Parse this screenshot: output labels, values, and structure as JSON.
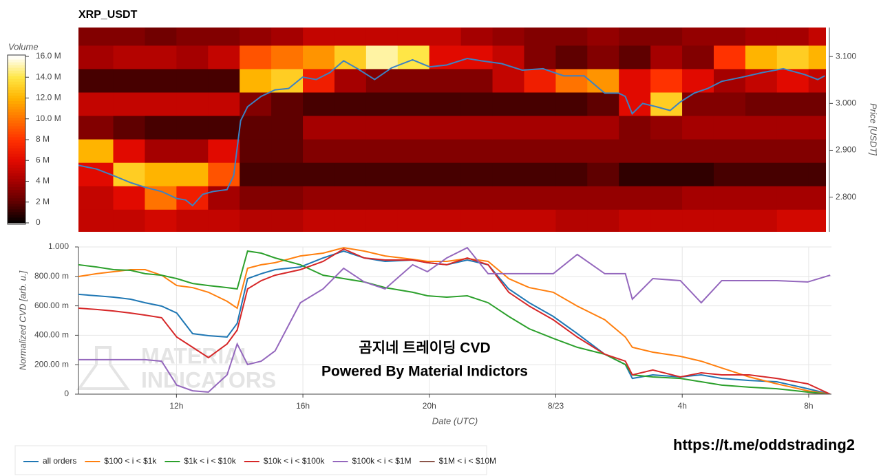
{
  "chart_data": [
    {
      "type": "heatmap",
      "title": "XRP_USDT",
      "colormap": "hot",
      "x_edges": [
        8.9,
        10,
        11,
        12,
        13,
        14,
        15,
        16,
        17,
        18,
        19,
        20,
        21,
        22,
        23,
        24,
        25,
        26,
        27,
        28,
        29,
        30,
        31,
        32,
        32.55
      ],
      "y_edges": [
        2.724,
        2.774,
        2.824,
        2.874,
        2.924,
        2.974,
        3.024,
        3.074,
        3.124,
        3.174
      ],
      "z": [
        [
          5,
          5,
          5.5,
          5,
          5,
          4.5,
          4.5,
          5,
          5,
          5,
          5,
          5,
          5,
          5,
          5,
          4.5,
          4.5,
          5,
          5,
          5,
          5,
          5,
          5.5,
          5.5
        ],
        [
          5,
          6,
          10,
          7,
          4,
          3,
          3,
          3.5,
          3.5,
          3.5,
          3.5,
          3.5,
          3.5,
          3.5,
          3.5,
          3.5,
          3.5,
          3.5,
          3.5,
          4,
          4,
          4,
          4,
          4
        ],
        [
          6,
          13,
          12,
          12,
          9,
          1.5,
          1.5,
          1.5,
          1.5,
          1.5,
          1.5,
          1.5,
          1.5,
          1.5,
          1.5,
          1.5,
          2,
          1,
          1,
          1,
          1.5,
          1.5,
          1.5,
          1.5
        ],
        [
          12,
          6,
          4,
          4,
          6,
          2,
          2,
          3,
          3,
          3,
          3,
          3,
          3,
          3,
          3,
          3,
          3,
          3,
          3,
          3,
          3,
          3,
          3,
          3
        ],
        [
          3,
          2,
          1.5,
          1.5,
          1.5,
          2,
          2,
          4,
          4,
          4,
          4,
          4,
          4,
          4,
          4,
          4,
          4,
          3,
          3.5,
          4,
          4,
          4,
          4,
          4
        ],
        [
          5,
          5,
          5,
          5,
          5,
          3,
          2,
          1.5,
          1.5,
          1.5,
          1.5,
          1.5,
          1.5,
          1.5,
          1.5,
          1.5,
          2,
          6,
          13,
          3,
          3,
          2.5,
          2.5,
          2.5
        ],
        [
          1.5,
          1.5,
          1.5,
          1.5,
          1.5,
          12,
          13,
          7,
          4,
          3,
          3,
          3,
          3,
          5,
          7,
          10,
          11,
          6,
          8,
          6,
          4,
          5,
          6,
          5
        ],
        [
          4,
          4.5,
          4.5,
          4,
          5,
          9,
          10,
          11,
          13,
          15,
          14,
          6,
          6,
          5,
          3,
          2,
          3,
          2,
          4,
          3,
          8,
          12,
          13,
          12
        ],
        [
          3,
          3,
          2.5,
          3,
          3,
          3.5,
          4,
          5,
          5,
          5,
          5,
          5,
          4,
          3.5,
          3,
          3,
          3.5,
          3,
          3,
          3.5,
          3.5,
          4,
          4,
          5
        ]
      ],
      "colorbar": {
        "label": "Volume",
        "lim": [
          0,
          16
        ],
        "ticks": [
          0,
          {
            "value": 2,
            "label": "2 M"
          },
          {
            "value": 4,
            "label": "4 M"
          },
          {
            "value": 6,
            "label": "6 M"
          },
          {
            "value": 8,
            "label": "8 M"
          },
          {
            "value": 10,
            "label": "10.0 M"
          },
          {
            "value": 12,
            "label": "12.0 M"
          },
          {
            "value": 14,
            "label": "14.0 M"
          },
          {
            "value": 16,
            "label": "16.0 M"
          }
        ]
      },
      "price": {
        "color": "#3b82c4",
        "x": [
          8.9,
          9.47,
          10.01,
          10.55,
          11.01,
          11.53,
          12.01,
          12.29,
          12.51,
          12.83,
          13.16,
          13.6,
          13.81,
          14.03,
          14.25,
          14.68,
          15.12,
          15.55,
          15.99,
          16.42,
          16.86,
          17.29,
          17.73,
          18.27,
          18.81,
          19.47,
          20.01,
          20.55,
          21.2,
          21.64,
          22.29,
          22.94,
          23.6,
          24.25,
          24.9,
          25.55,
          25.99,
          26.2,
          26.42,
          26.75,
          27.18,
          27.62,
          27.94,
          28.38,
          28.81,
          29.25,
          29.9,
          30.55,
          31.2,
          31.86,
          32.29,
          32.51
        ],
        "values": [
          2.868,
          2.86,
          2.846,
          2.831,
          2.821,
          2.812,
          2.797,
          2.794,
          2.782,
          2.806,
          2.812,
          2.816,
          2.846,
          2.963,
          2.993,
          3.015,
          3.029,
          3.032,
          3.056,
          3.051,
          3.066,
          3.091,
          3.074,
          3.051,
          3.076,
          3.093,
          3.078,
          3.082,
          3.096,
          3.091,
          3.085,
          3.071,
          3.074,
          3.059,
          3.059,
          3.022,
          3.022,
          3.015,
          2.978,
          3.0,
          2.993,
          2.985,
          3.003,
          3.022,
          3.032,
          3.047,
          3.056,
          3.066,
          3.074,
          3.062,
          3.051,
          3.059
        ]
      },
      "xlim": [
        8.9,
        32.55
      ],
      "ylim": [
        2.726,
        3.162
      ],
      "yticks": [
        {
          "value": 2.8,
          "label": "2.800"
        },
        {
          "value": 2.9,
          "label": "2.900"
        },
        {
          "value": 3.0,
          "label": "3.000"
        },
        {
          "value": 3.1,
          "label": "3.100"
        }
      ],
      "ylabel": "Price [USDT]",
      "yaxis_side": "right"
    },
    {
      "type": "line",
      "x": [
        8.9,
        9.47,
        10.01,
        10.55,
        11.01,
        11.53,
        12.01,
        12.51,
        13.01,
        13.6,
        13.92,
        14.25,
        14.68,
        15.12,
        15.92,
        16.64,
        17.29,
        17.94,
        18.6,
        19.47,
        19.94,
        20.55,
        21.2,
        21.86,
        22.51,
        23.16,
        23.92,
        24.68,
        25.55,
        26.2,
        26.42,
        27.07,
        27.94,
        28.6,
        29.25,
        30.12,
        30.99,
        31.97,
        32.68
      ],
      "series": [
        {
          "name": "all orders",
          "color": "#1f77b4",
          "values": [
            0.678,
            0.668,
            0.659,
            0.645,
            0.621,
            0.598,
            0.551,
            0.411,
            0.397,
            0.388,
            0.481,
            0.785,
            0.818,
            0.846,
            0.864,
            0.925,
            0.972,
            0.925,
            0.902,
            0.911,
            0.893,
            0.879,
            0.911,
            0.879,
            0.715,
            0.621,
            0.528,
            0.411,
            0.271,
            0.201,
            0.107,
            0.131,
            0.117,
            0.131,
            0.107,
            0.093,
            0.084,
            0.037,
            0
          ]
        },
        {
          "name": "$100 < i < $1k",
          "color": "#ff7f0e",
          "values": [
            0.799,
            0.818,
            0.832,
            0.846,
            0.846,
            0.808,
            0.738,
            0.724,
            0.692,
            0.631,
            0.584,
            0.855,
            0.879,
            0.893,
            0.939,
            0.958,
            0.995,
            0.972,
            0.939,
            0.916,
            0.902,
            0.902,
            0.921,
            0.902,
            0.785,
            0.724,
            0.692,
            0.598,
            0.505,
            0.388,
            0.318,
            0.285,
            0.257,
            0.224,
            0.178,
            0.117,
            0.07,
            0.023,
            0
          ]
        },
        {
          "name": "$1k < i < $10k",
          "color": "#2ca02c",
          "values": [
            0.879,
            0.864,
            0.846,
            0.841,
            0.818,
            0.808,
            0.785,
            0.752,
            0.738,
            0.724,
            0.715,
            0.972,
            0.958,
            0.925,
            0.879,
            0.808,
            0.785,
            0.762,
            0.724,
            0.692,
            0.668,
            0.659,
            0.668,
            0.621,
            0.528,
            0.444,
            0.379,
            0.318,
            0.271,
            0.201,
            0.131,
            0.117,
            0.107,
            0.084,
            0.061,
            0.047,
            0.037,
            0.014,
            0
          ]
        },
        {
          "name": "$10k < i < $100k",
          "color": "#d62728",
          "values": [
            0.584,
            0.575,
            0.565,
            0.551,
            0.537,
            0.519,
            0.388,
            0.318,
            0.248,
            0.341,
            0.435,
            0.715,
            0.771,
            0.808,
            0.846,
            0.902,
            0.986,
            0.925,
            0.911,
            0.911,
            0.893,
            0.879,
            0.925,
            0.879,
            0.692,
            0.598,
            0.505,
            0.388,
            0.271,
            0.224,
            0.131,
            0.164,
            0.117,
            0.145,
            0.131,
            0.131,
            0.107,
            0.07,
            0
          ]
        },
        {
          "name": "$100k < i < $1M",
          "color": "#9467bd",
          "values": [
            0.234,
            0.234,
            0.234,
            0.234,
            0.234,
            0.224,
            0.061,
            0.023,
            0.014,
            0.131,
            0.341,
            0.201,
            0.224,
            0.294,
            0.621,
            0.715,
            0.855,
            0.762,
            0.715,
            0.879,
            0.832,
            0.925,
            0.995,
            0.818,
            0.818,
            0.818,
            0.818,
            0.949,
            0.818,
            0.818,
            0.645,
            0.785,
            0.771,
            0.621,
            0.771,
            0.771,
            0.771,
            0.762,
            0.808
          ]
        },
        {
          "name": "$1M < i < $10M",
          "color": "#8c564b",
          "values": [
            null,
            null,
            null,
            null,
            null,
            null,
            null,
            null,
            null,
            null,
            null,
            null,
            null,
            null,
            null,
            null,
            null,
            null,
            null,
            null,
            null,
            null,
            null,
            null,
            null,
            null,
            null,
            null,
            null,
            null,
            null,
            null,
            null,
            null,
            null,
            null,
            null,
            0,
            0
          ]
        }
      ],
      "xlim": [
        8.9,
        32.72
      ],
      "xticks": [
        {
          "value": 12,
          "label": "12h"
        },
        {
          "value": 16,
          "label": "16h"
        },
        {
          "value": 20,
          "label": "20h"
        },
        {
          "value": 24,
          "label": "8/23"
        },
        {
          "value": 28,
          "label": "4h"
        },
        {
          "value": 32,
          "label": "8h"
        }
      ],
      "ylim": [
        0,
        1
      ],
      "yticks": [
        0,
        {
          "value": 0.2,
          "label": "200.00 m"
        },
        {
          "value": 0.4,
          "label": "400.00 m"
        },
        {
          "value": 0.6,
          "label": "600.00 m"
        },
        {
          "value": 0.8,
          "label": "800.00 m"
        },
        {
          "value": 1,
          "label": "1.000"
        }
      ],
      "xlabel": "Date (UTC)",
      "ylabel": "Normalized CVD [arb. u.]",
      "grid": true,
      "legend": "bottom",
      "annotations": [
        "곰지네 트레이딩 CVD",
        "Powered By Material Indictors"
      ],
      "watermark": [
        "MATERIAL",
        "INDICATORS"
      ]
    }
  ],
  "link": "https://t.me/oddstrading2"
}
